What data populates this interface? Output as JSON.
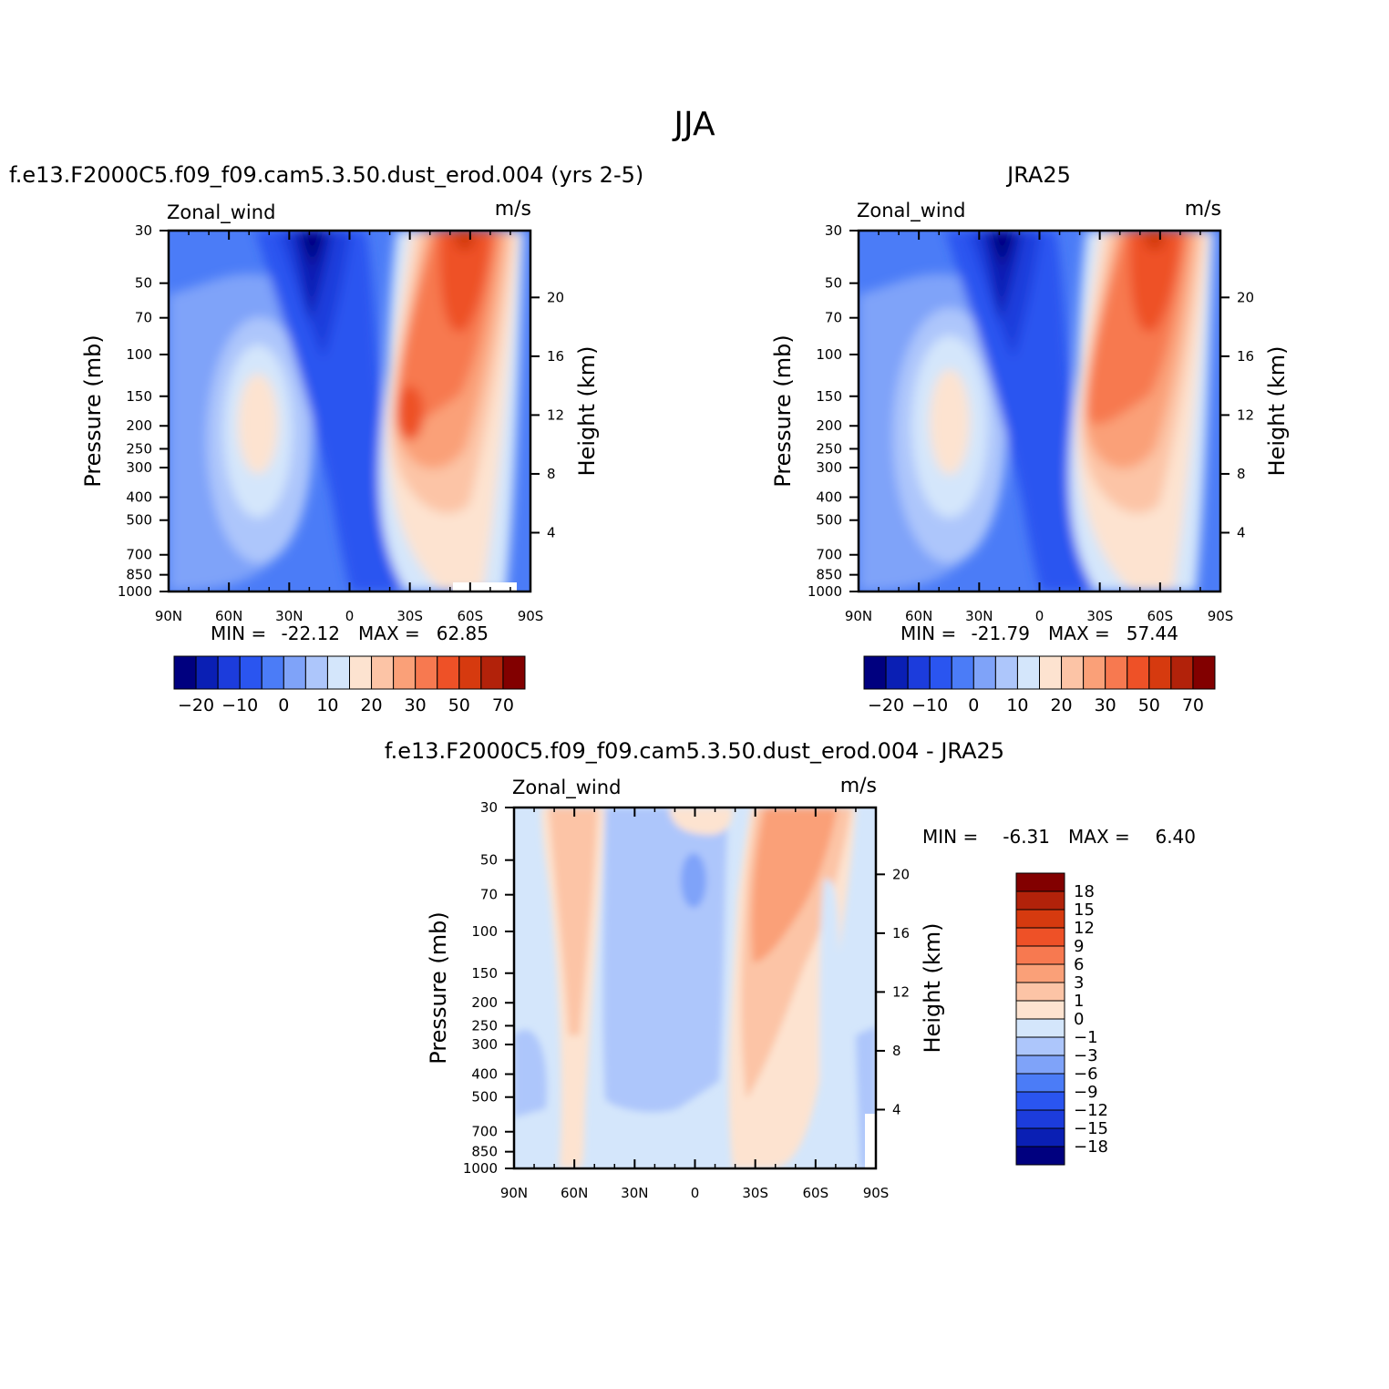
{
  "figure": {
    "title": "JJA"
  },
  "chart_data": [
    {
      "type": "heatmap",
      "subtitle": "f.e13.F2000C5.f09_f09.cam5.3.50.dust_erod.004 (yrs 2-5)",
      "variable": "Zonal_wind",
      "units": "m/s",
      "ylabel": "Pressure (mb)",
      "ylabel_right": "Height (km)",
      "x_ticks": [
        "90N",
        "60N",
        "30N",
        "0",
        "30S",
        "60S",
        "90S"
      ],
      "y_ticks": [
        "30",
        "50",
        "70",
        "100",
        "150",
        "200",
        "250",
        "300",
        "400",
        "500",
        "700",
        "850",
        "1000"
      ],
      "y_ticks_right": [
        "20",
        "16",
        "12",
        "8",
        "4"
      ],
      "stats": {
        "min_label": "MIN =",
        "min": "-22.12",
        "max_label": "MAX =",
        "max": "62.85"
      },
      "colorbar_ticks": [
        "-20",
        "-10",
        "0",
        "10",
        "20",
        "30",
        "50",
        "70"
      ],
      "colorbar_colors": [
        "#00007f",
        "#0a1fb4",
        "#1c3cdc",
        "#2a55f0",
        "#4b7cf7",
        "#7fa3f9",
        "#adc6fb",
        "#d4e6fb",
        "#fde3d0",
        "#fcc4a6",
        "#faa078",
        "#f77950",
        "#ee5127",
        "#d63a0f",
        "#b2220a",
        "#820000"
      ],
      "jets": [
        {
          "lat": 10,
          "p": 30,
          "u": -22.12
        },
        {
          "lat": -47,
          "p": 200,
          "u": 20.5
        },
        {
          "lat": 50,
          "p": 30,
          "u": 62.85
        },
        {
          "lat": 27,
          "p": 200,
          "u": 50
        }
      ]
    },
    {
      "type": "heatmap",
      "subtitle": "JRA25",
      "variable": "Zonal_wind",
      "units": "m/s",
      "ylabel": "Pressure (mb)",
      "ylabel_right": "Height (km)",
      "x_ticks": [
        "90N",
        "60N",
        "30N",
        "0",
        "30S",
        "60S",
        "90S"
      ],
      "y_ticks": [
        "30",
        "50",
        "70",
        "100",
        "150",
        "200",
        "250",
        "300",
        "400",
        "500",
        "700",
        "850",
        "1000"
      ],
      "y_ticks_right": [
        "20",
        "16",
        "12",
        "8",
        "4"
      ],
      "stats": {
        "min_label": "MIN =",
        "min": "-21.79",
        "max_label": "MAX =",
        "max": "57.44"
      },
      "colorbar_ticks": [
        "-20",
        "-10",
        "0",
        "10",
        "20",
        "30",
        "50",
        "70"
      ],
      "colorbar_colors": [
        "#00007f",
        "#0a1fb4",
        "#1c3cdc",
        "#2a55f0",
        "#4b7cf7",
        "#7fa3f9",
        "#adc6fb",
        "#d4e6fb",
        "#fde3d0",
        "#fcc4a6",
        "#faa078",
        "#f77950",
        "#ee5127",
        "#d63a0f",
        "#b2220a",
        "#820000"
      ],
      "jets": [
        {
          "lat": 10,
          "p": 30,
          "u": -21.79
        },
        {
          "lat": -47,
          "p": 200,
          "u": 20
        },
        {
          "lat": 50,
          "p": 30,
          "u": 57.44
        },
        {
          "lat": 27,
          "p": 200,
          "u": 45
        }
      ]
    },
    {
      "type": "heatmap",
      "subtitle": "f.e13.F2000C5.f09_f09.cam5.3.50.dust_erod.004 - JRA25",
      "variable": "Zonal_wind",
      "units": "m/s",
      "ylabel": "Pressure (mb)",
      "ylabel_right": "Height (km)",
      "x_ticks": [
        "90N",
        "60N",
        "30N",
        "0",
        "30S",
        "60S",
        "90S"
      ],
      "y_ticks": [
        "30",
        "50",
        "70",
        "100",
        "150",
        "200",
        "250",
        "300",
        "400",
        "500",
        "700",
        "850",
        "1000"
      ],
      "y_ticks_right": [
        "20",
        "16",
        "12",
        "8",
        "4"
      ],
      "stats": {
        "min_label": "MIN =",
        "min": "-6.31",
        "max_label": "MAX =",
        "max": "6.40"
      },
      "colorbar_ticks": [
        "18",
        "15",
        "12",
        "9",
        "6",
        "3",
        "1",
        "0",
        "-1",
        "-3",
        "-6",
        "-9",
        "-12",
        "-15",
        "-18"
      ],
      "colorbar_colors": [
        "#820000",
        "#b2220a",
        "#d63a0f",
        "#ee5127",
        "#f77950",
        "#faa078",
        "#fcc4a6",
        "#fde3d0",
        "#d4e6fb",
        "#adc6fb",
        "#7fa3f9",
        "#4b7cf7",
        "#2a55f0",
        "#1c3cdc",
        "#0a1fb4",
        "#00007f"
      ],
      "bands": [
        {
          "lat1": 75,
          "lat2": 52,
          "level": "1 to 3"
        },
        {
          "lat1": 45,
          "lat2": 8,
          "level": "-1 to -3"
        },
        {
          "lat1": -20,
          "lat2": -55,
          "level": "3 to 6"
        },
        {
          "lat1": -60,
          "lat2": -80,
          "level": "0 to 1"
        }
      ]
    }
  ]
}
